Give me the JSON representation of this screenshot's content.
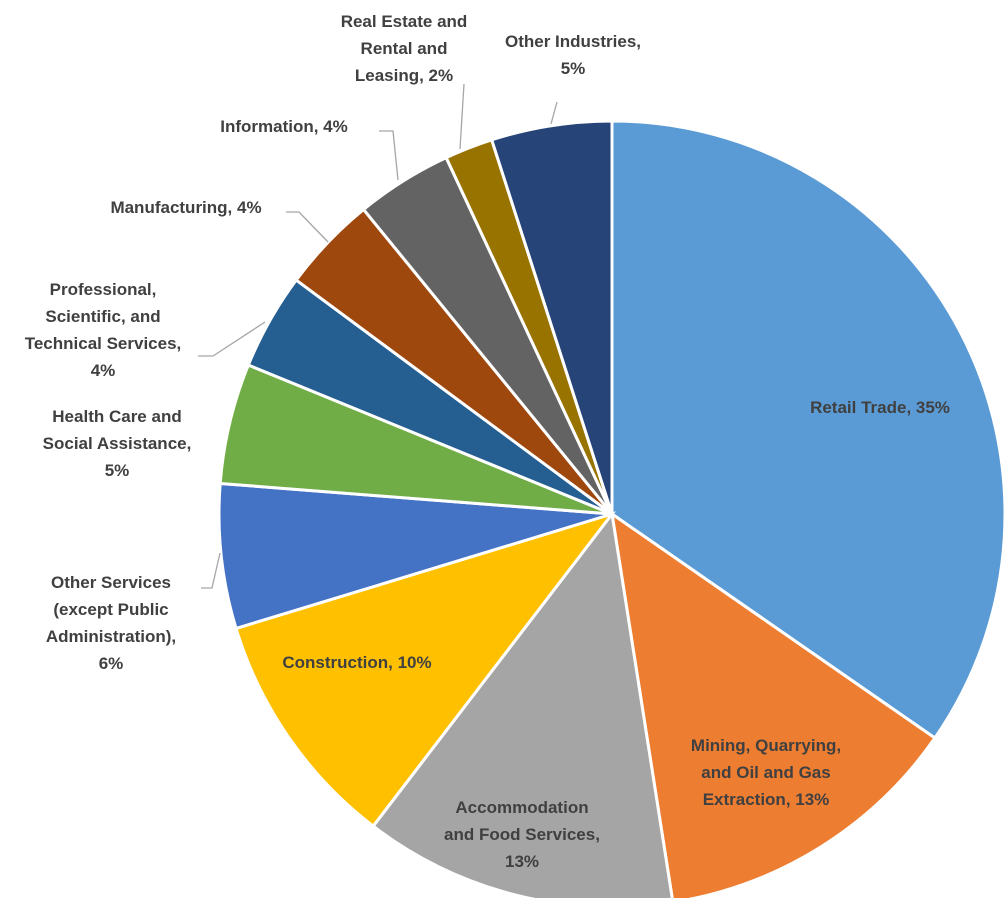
{
  "chart_data": {
    "type": "pie",
    "title": "",
    "start_angle_deg": 0,
    "direction": "clockwise",
    "slices": [
      {
        "label": "Retail Trade",
        "value": 35,
        "value_label": "35%",
        "color": "#5B9BD5"
      },
      {
        "label": "Mining, Quarrying, and Oil and Gas Extraction",
        "value": 13,
        "value_label": "13%",
        "color": "#ED7D31"
      },
      {
        "label": "Accommodation and Food Services",
        "value": 13,
        "value_label": "13%",
        "color": "#A5A5A5"
      },
      {
        "label": "Construction",
        "value": 10,
        "value_label": "10%",
        "color": "#FFC000"
      },
      {
        "label": "Other Services (except Public Administration)",
        "value": 6,
        "value_label": "6%",
        "color": "#4472C4"
      },
      {
        "label": "Health Care and Social Assistance",
        "value": 5,
        "value_label": "5%",
        "color": "#70AD47"
      },
      {
        "label": "Professional, Scientific, and Technical Services",
        "value": 4,
        "value_label": "4%",
        "color": "#255E91"
      },
      {
        "label": "Manufacturing",
        "value": 4,
        "value_label": "4%",
        "color": "#9E480E"
      },
      {
        "label": "Information",
        "value": 4,
        "value_label": "4%",
        "color": "#636363"
      },
      {
        "label": "Real Estate and Rental and Leasing",
        "value": 2,
        "value_label": "2%",
        "color": "#997300"
      },
      {
        "label": "Other Industries",
        "value": 5,
        "value_label": "5%",
        "color": "#264478"
      }
    ],
    "label_text": {
      "retail": [
        "Retail Trade, 35%"
      ],
      "mining": [
        "Mining, Quarrying,",
        "and Oil and Gas",
        "Extraction, 13%"
      ],
      "accommodation": [
        "Accommodation",
        "and Food Services,",
        "13%"
      ],
      "construction": [
        "Construction, 10%"
      ],
      "other_services": [
        "Other Services",
        "(except Public",
        "Administration),",
        "6%"
      ],
      "health": [
        "Health Care and",
        "Social Assistance,",
        "5%"
      ],
      "professional": [
        "Professional,",
        "Scientific, and",
        "Technical Services,",
        "4%"
      ],
      "manufacturing": [
        "Manufacturing, 4%"
      ],
      "information": [
        "Information, 4%"
      ],
      "real_estate": [
        "Real Estate and",
        "Rental and",
        "Leasing, 2%"
      ],
      "other_industries": [
        "Other Industries,",
        "5%"
      ]
    },
    "legend": "none"
  }
}
